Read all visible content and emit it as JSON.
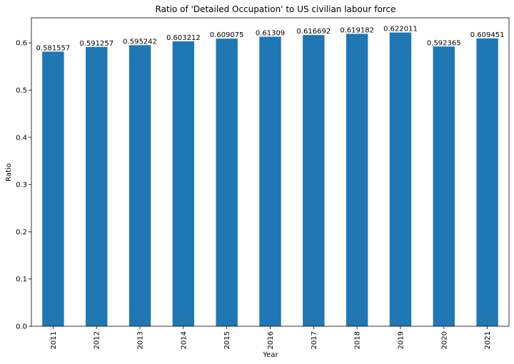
{
  "chart_data": {
    "type": "bar",
    "title": "Ratio of 'Detailed Occupation' to US civilian labour force",
    "xlabel": "Year",
    "ylabel": "Ratio",
    "categories": [
      "2011",
      "2012",
      "2013",
      "2014",
      "2015",
      "2016",
      "2017",
      "2018",
      "2019",
      "2020",
      "2021"
    ],
    "values": [
      0.581557,
      0.591257,
      0.595242,
      0.603212,
      0.609075,
      0.61309,
      0.616692,
      0.619182,
      0.622011,
      0.592365,
      0.609451
    ],
    "value_labels": [
      "0.581557",
      "0.591257",
      "0.595242",
      "0.603212",
      "0.609075",
      "0.61309",
      "0.616692",
      "0.619182",
      "0.622011",
      "0.592365",
      "0.609451"
    ],
    "ylim": [
      0,
      0.6531
    ],
    "yticks": [
      0.0,
      0.1,
      0.2,
      0.3,
      0.4,
      0.5,
      0.6
    ],
    "ytick_labels": [
      "0.0",
      "0.1",
      "0.2",
      "0.3",
      "0.4",
      "0.5",
      "0.6"
    ],
    "grid": false,
    "legend": "none",
    "bar_color": "#1f77b4"
  }
}
